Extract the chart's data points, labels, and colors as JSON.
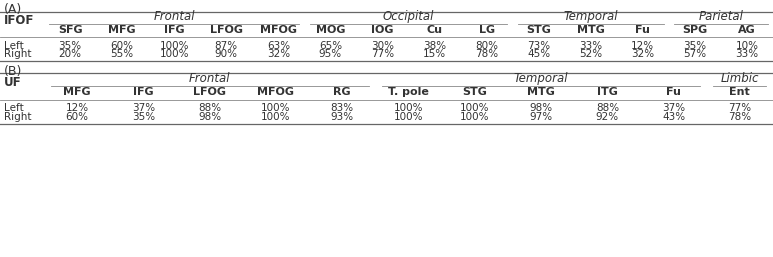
{
  "title_A": "(A)",
  "title_B": "(B)",
  "section_A_label": "IFOF",
  "section_B_label": "UF",
  "A_col_headers": [
    "SFG",
    "MFG",
    "IFG",
    "LFOG",
    "MFOG",
    "MOG",
    "IOG",
    "Cu",
    "LG",
    "STG",
    "MTG",
    "Fu",
    "SPG",
    "AG"
  ],
  "A_row_labels": [
    "Left",
    "Right"
  ],
  "A_data": [
    [
      "35%",
      "60%",
      "100%",
      "87%",
      "63%",
      "65%",
      "30%",
      "38%",
      "80%",
      "73%",
      "33%",
      "12%",
      "35%",
      "10%"
    ],
    [
      "20%",
      "55%",
      "100%",
      "90%",
      "32%",
      "95%",
      "77%",
      "15%",
      "78%",
      "45%",
      "52%",
      "32%",
      "57%",
      "33%"
    ]
  ],
  "B_col_headers": [
    "MFG",
    "IFG",
    "LFOG",
    "MFOG",
    "RG",
    "T. pole",
    "STG",
    "MTG",
    "ITG",
    "Fu",
    "Ent"
  ],
  "B_row_labels": [
    "Left",
    "Right"
  ],
  "B_data": [
    [
      "12%",
      "37%",
      "88%",
      "100%",
      "83%",
      "100%",
      "100%",
      "98%",
      "88%",
      "37%",
      "77%"
    ],
    [
      "60%",
      "35%",
      "98%",
      "100%",
      "93%",
      "100%",
      "100%",
      "97%",
      "92%",
      "43%",
      "78%"
    ]
  ],
  "bg_color": "#ffffff",
  "text_color": "#333333",
  "fontsize_data": 7.5,
  "fontsize_header": 8,
  "fontsize_group": 8.5,
  "fontsize_section": 9,
  "fontsize_label": 8.5
}
